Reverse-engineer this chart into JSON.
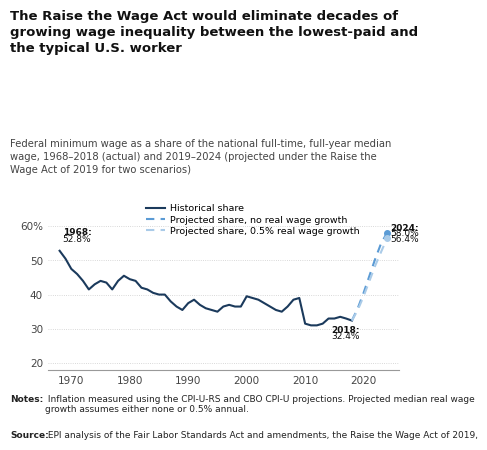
{
  "title": "The Raise the Wage Act would eliminate decades of\ngrowing wage inequality between the lowest-paid and\nthe typical U.S. worker",
  "subtitle": "Federal minimum wage as a share of the national full-time, full-year median\nwage, 1968–2018 (actual) and 2019–2024 (projected under the Raise the\nWage Act of 2019 for two scenarios)",
  "notes_bold": "Notes:",
  "notes_regular": " Inflation measured using the CPI-U-RS and CBO CPI-U projections. Projected median real wage\ngrowth assumes either none or 0.5% annual.",
  "source_bold": "Source:",
  "source_regular": " EPI analysis of the Fair Labor Standards Act and amendments, the Raise the Wage Act of 2019,",
  "historical_x": [
    1968,
    1969,
    1970,
    1971,
    1972,
    1973,
    1974,
    1975,
    1976,
    1977,
    1978,
    1979,
    1980,
    1981,
    1982,
    1983,
    1984,
    1985,
    1986,
    1987,
    1988,
    1989,
    1990,
    1991,
    1992,
    1993,
    1994,
    1995,
    1996,
    1997,
    1998,
    1999,
    2000,
    2001,
    2002,
    2003,
    2004,
    2005,
    2006,
    2007,
    2008,
    2009,
    2010,
    2011,
    2012,
    2013,
    2014,
    2015,
    2016,
    2017,
    2018
  ],
  "historical_y": [
    52.8,
    50.5,
    47.5,
    46.0,
    44.0,
    41.5,
    43.0,
    44.0,
    43.5,
    41.5,
    44.0,
    45.5,
    44.5,
    44.0,
    42.0,
    41.5,
    40.5,
    40.0,
    40.0,
    38.0,
    36.5,
    35.5,
    37.5,
    38.5,
    37.0,
    36.0,
    35.5,
    35.0,
    36.5,
    37.0,
    36.5,
    36.5,
    39.5,
    39.0,
    38.5,
    37.5,
    36.5,
    35.5,
    35.0,
    36.5,
    38.5,
    39.0,
    31.5,
    31.0,
    31.0,
    31.5,
    33.0,
    33.0,
    33.5,
    33.0,
    32.4
  ],
  "proj_no_growth_x": [
    2018,
    2019,
    2020,
    2021,
    2022,
    2023,
    2024
  ],
  "proj_no_growth_y": [
    32.4,
    36.0,
    40.5,
    45.5,
    50.5,
    55.0,
    58.0
  ],
  "proj_05_growth_x": [
    2018,
    2019,
    2020,
    2021,
    2022,
    2023,
    2024
  ],
  "proj_05_growth_y": [
    32.4,
    35.5,
    39.5,
    44.0,
    48.5,
    52.5,
    56.4
  ],
  "hist_color": "#1b3a5c",
  "proj_no_growth_color": "#5b9bd5",
  "proj_05_growth_color": "#aacbe8",
  "xlim": [
    1966,
    2026
  ],
  "ylim": [
    18,
    65
  ],
  "yticks": [
    20,
    30,
    40,
    50,
    60
  ],
  "xticks": [
    1970,
    1980,
    1990,
    2000,
    2010,
    2020
  ],
  "legend_labels": [
    "Historical share",
    "Projected share, no real wage growth",
    "Projected share, 0.5% real wage growth"
  ]
}
